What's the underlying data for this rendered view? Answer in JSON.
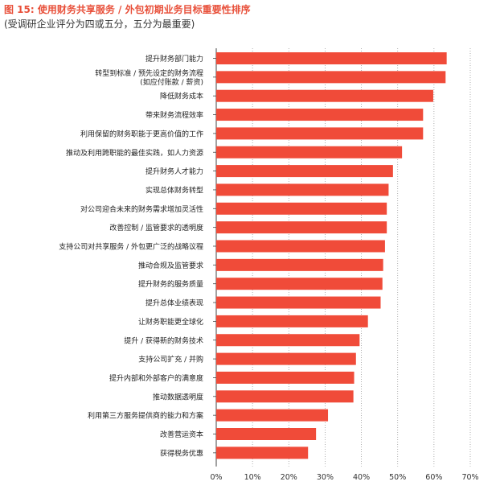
{
  "title": "图 15: 使用财务共享服务 / 外包初期业务目标重要性排序",
  "subtitle": "(受调研企业评分为四或五分，五分为最重要)",
  "colors": {
    "bar": "#f04b39",
    "title": "#e8503a",
    "axis": "#444444"
  },
  "chart_data": {
    "type": "bar",
    "orientation": "horizontal",
    "categories": [
      [
        "提升财务部门能力"
      ],
      [
        "转型到标准 / 预先设定的财务流程",
        "(如应付账款 / 薪资)"
      ],
      [
        "降低财务成本"
      ],
      [
        "带来财务流程效率"
      ],
      [
        "利用保留的财务职能于更高价值的工作"
      ],
      [
        "推动及利用跨职能的最佳实践，如人力资源"
      ],
      [
        "提升财务人才能力"
      ],
      [
        "实现总体财务转型"
      ],
      [
        "对公司迎合未来的财务需求增加灵活性"
      ],
      [
        "改善控制 / 监管要求的透明度"
      ],
      [
        "支持公司对共享服务 / 外包更广泛的战略议程"
      ],
      [
        "推动合规及监管要求"
      ],
      [
        "提升财务的服务质量"
      ],
      [
        "提升总体业绩表现"
      ],
      [
        "让财务职能更全球化"
      ],
      [
        "提升 / 获得新的财务技术"
      ],
      [
        "支持公司扩充 / 并购"
      ],
      [
        "提升内部和外部客户的满意度"
      ],
      [
        "推动数据透明度"
      ],
      [
        "利用第三方服务提供商的能力和方案"
      ],
      [
        "改善营运资本"
      ],
      [
        "获得税务优惠"
      ]
    ],
    "values": [
      63.5,
      63.2,
      59.8,
      57,
      57,
      51.2,
      48.7,
      47.5,
      47,
      47,
      46.5,
      46,
      45.8,
      45.3,
      41.8,
      39.5,
      38.5,
      38,
      37.8,
      30.8,
      27.5,
      25.3
    ],
    "xlim": [
      0,
      70
    ],
    "xticks": [
      "0%",
      "10%",
      "20%",
      "30%",
      "40%",
      "50%",
      "60%",
      "70%"
    ],
    "grid": true,
    "xlabel": "",
    "ylabel": ""
  }
}
